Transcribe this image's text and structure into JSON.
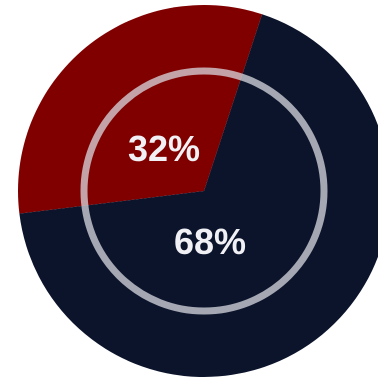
{
  "chart_data": {
    "type": "pie",
    "categories": [
      "",
      ""
    ],
    "values": [
      32,
      68
    ],
    "labels": [
      "32%",
      "68%"
    ],
    "colors": [
      "#800000",
      "#0b142b"
    ],
    "inner_ring_color": "#d9d9e0"
  }
}
